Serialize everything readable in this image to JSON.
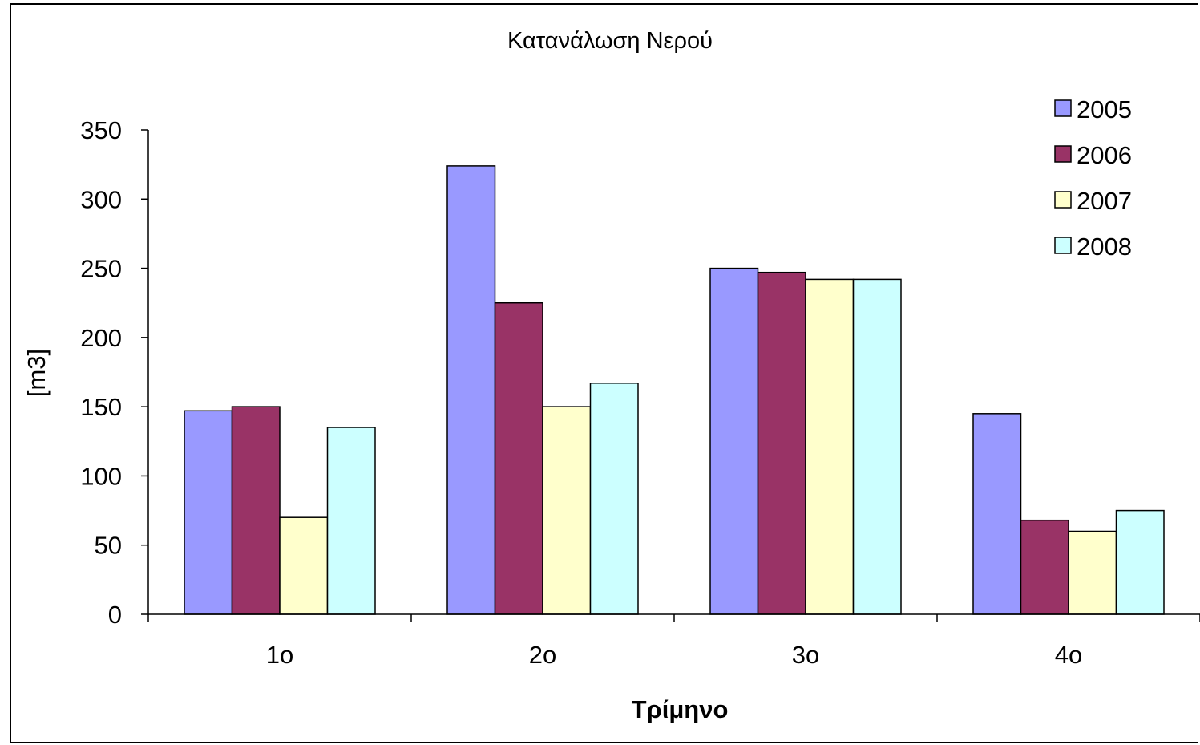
{
  "chart_data": {
    "type": "bar",
    "title": "Κατανάλωση Νερού",
    "xlabel": "Τρίμηνο",
    "ylabel": "[m3]",
    "categories": [
      "1ο",
      "2ο",
      "3ο",
      "4ο"
    ],
    "yticks": [
      "0",
      "50",
      "100",
      "150",
      "200",
      "250",
      "300",
      "350"
    ],
    "ylim": [
      0,
      350
    ],
    "grid": false,
    "legend_position": "top-right",
    "series": [
      {
        "name": "2005",
        "color": "#9999ff",
        "values": [
          147,
          324,
          250,
          145
        ]
      },
      {
        "name": "2006",
        "color": "#993366",
        "values": [
          150,
          225,
          247,
          68
        ]
      },
      {
        "name": "2007",
        "color": "#ffffcc",
        "values": [
          70,
          150,
          242,
          60
        ]
      },
      {
        "name": "2008",
        "color": "#ccffff",
        "values": [
          135,
          167,
          242,
          75
        ]
      }
    ]
  }
}
